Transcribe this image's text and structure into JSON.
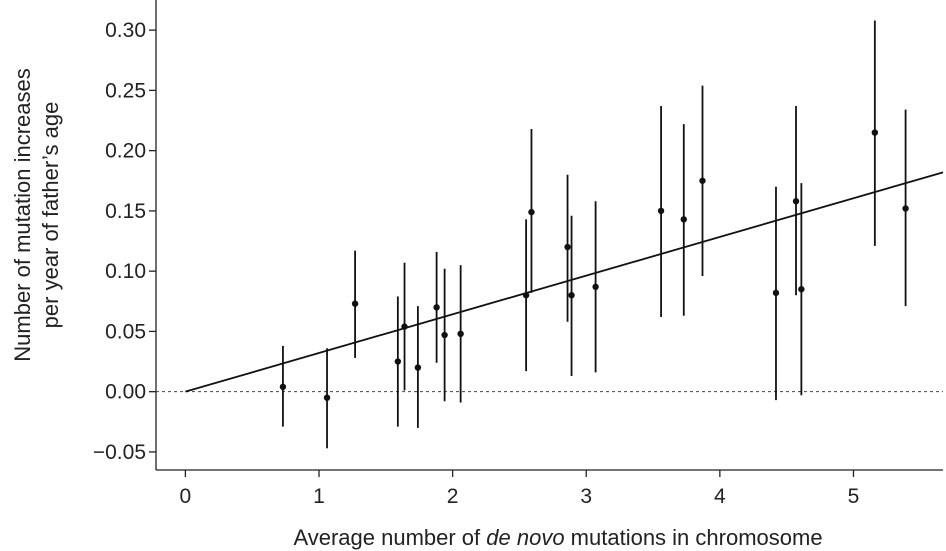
{
  "chart_data": {
    "type": "scatter",
    "title": "",
    "xlabel_parts": [
      "Average number of ",
      "de novo",
      " mutations in chromosome"
    ],
    "ylabel_lines": [
      "Number of mutation increases",
      "per year of father’s age"
    ],
    "xlim": [
      -0.22,
      5.67
    ],
    "ylim": [
      -0.065,
      0.325
    ],
    "x_ticks": [
      0,
      1,
      2,
      3,
      4,
      5
    ],
    "x_tick_labels": [
      "0",
      "1",
      "2",
      "3",
      "4",
      "5"
    ],
    "y_ticks": [
      -0.05,
      0.0,
      0.05,
      0.1,
      0.15,
      0.2,
      0.25,
      0.3
    ],
    "y_tick_labels": [
      "−0.05",
      "0.00",
      "0.05",
      "0.10",
      "0.15",
      "0.20",
      "0.25",
      "0.30"
    ],
    "grid": false,
    "reference_line_y": 0.0,
    "fit_line": {
      "x": [
        0,
        5.67
      ],
      "y": [
        0.0,
        0.182
      ]
    },
    "points": [
      {
        "x": 0.73,
        "y": 0.004,
        "low": -0.029,
        "high": 0.038
      },
      {
        "x": 1.06,
        "y": -0.005,
        "low": -0.047,
        "high": 0.036
      },
      {
        "x": 1.27,
        "y": 0.073,
        "low": 0.028,
        "high": 0.117
      },
      {
        "x": 1.59,
        "y": 0.025,
        "low": -0.029,
        "high": 0.079
      },
      {
        "x": 1.64,
        "y": 0.054,
        "low": 0.001,
        "high": 0.107
      },
      {
        "x": 1.74,
        "y": 0.02,
        "low": -0.03,
        "high": 0.071
      },
      {
        "x": 1.88,
        "y": 0.07,
        "low": 0.024,
        "high": 0.116
      },
      {
        "x": 1.94,
        "y": 0.047,
        "low": -0.008,
        "high": 0.102
      },
      {
        "x": 2.06,
        "y": 0.048,
        "low": -0.009,
        "high": 0.105
      },
      {
        "x": 2.55,
        "y": 0.08,
        "low": 0.017,
        "high": 0.143
      },
      {
        "x": 2.59,
        "y": 0.149,
        "low": 0.082,
        "high": 0.218
      },
      {
        "x": 2.86,
        "y": 0.12,
        "low": 0.058,
        "high": 0.18
      },
      {
        "x": 2.89,
        "y": 0.08,
        "low": 0.013,
        "high": 0.146
      },
      {
        "x": 3.07,
        "y": 0.087,
        "low": 0.016,
        "high": 0.158
      },
      {
        "x": 3.56,
        "y": 0.15,
        "low": 0.062,
        "high": 0.237
      },
      {
        "x": 3.73,
        "y": 0.143,
        "low": 0.063,
        "high": 0.222
      },
      {
        "x": 3.87,
        "y": 0.175,
        "low": 0.096,
        "high": 0.254
      },
      {
        "x": 4.42,
        "y": 0.082,
        "low": -0.007,
        "high": 0.17
      },
      {
        "x": 4.57,
        "y": 0.158,
        "low": 0.08,
        "high": 0.237
      },
      {
        "x": 4.61,
        "y": 0.085,
        "low": -0.003,
        "high": 0.173
      },
      {
        "x": 5.16,
        "y": 0.215,
        "low": 0.121,
        "high": 0.308
      },
      {
        "x": 5.39,
        "y": 0.152,
        "low": 0.071,
        "high": 0.234
      }
    ]
  }
}
